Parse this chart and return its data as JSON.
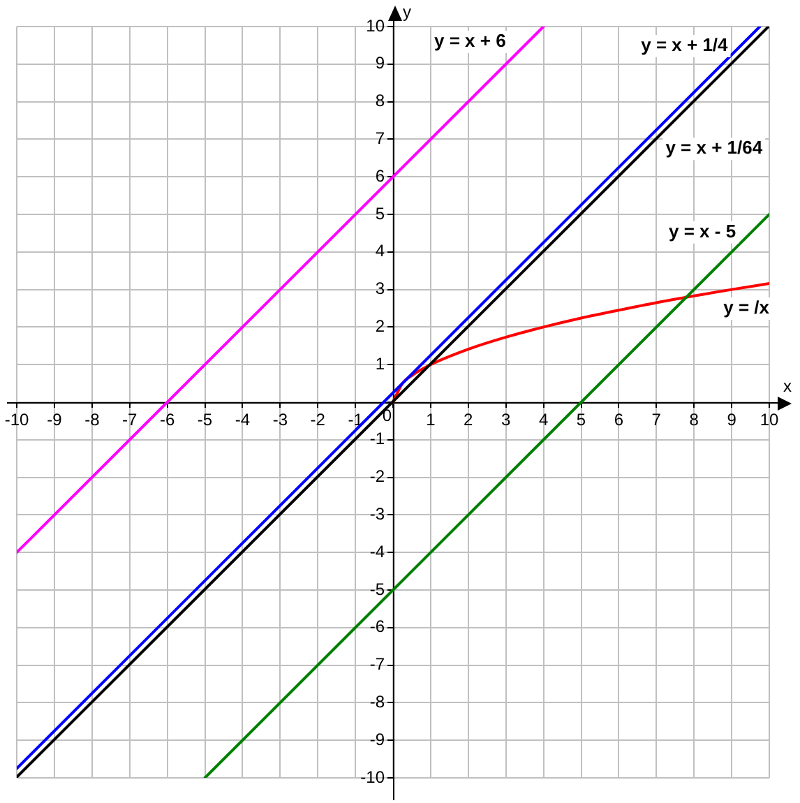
{
  "chart_data": {
    "type": "line",
    "xlabel": "x",
    "ylabel": "y",
    "xlim": [
      -10,
      10
    ],
    "ylim": [
      -10,
      10
    ],
    "xticks": [
      -10,
      -9,
      -8,
      -7,
      -6,
      -5,
      -4,
      -3,
      -2,
      -1,
      0,
      1,
      2,
      3,
      4,
      5,
      6,
      7,
      8,
      9,
      10
    ],
    "yticks": [
      -10,
      -9,
      -8,
      -7,
      -6,
      -5,
      -4,
      -3,
      -2,
      -1,
      {
        "value": 0,
        "label": null
      },
      1,
      2,
      3,
      4,
      5,
      6,
      7,
      8,
      9,
      10
    ],
    "grid": true,
    "marker": "none",
    "line_style": "solid",
    "series": [
      {
        "name": "y = x + 6",
        "color": "#ff00ff",
        "x": [
          -10,
          4
        ],
        "values": [
          -4,
          10
        ]
      },
      {
        "name": "y = x + 1/4",
        "color": "#0000ff",
        "x": [
          -10,
          9.75
        ],
        "values": [
          -9.75,
          10
        ]
      },
      {
        "name": "y = x + 1/64",
        "color": "#000000",
        "x": [
          -10,
          9.98
        ],
        "values": [
          -9.98,
          10
        ]
      },
      {
        "name": "y = x - 5",
        "color": "#008000",
        "x": [
          -5,
          10
        ],
        "values": [
          -10,
          5
        ]
      },
      {
        "name": "y = /x",
        "color": "#ff0000",
        "x": [
          0,
          0.25,
          0.5,
          1,
          2,
          3,
          4,
          5,
          6,
          7,
          8,
          9,
          10
        ],
        "values": [
          0,
          0.5,
          0.71,
          1,
          1.41,
          1.73,
          2,
          2.24,
          2.45,
          2.65,
          2.83,
          3,
          3.16
        ]
      }
    ]
  }
}
